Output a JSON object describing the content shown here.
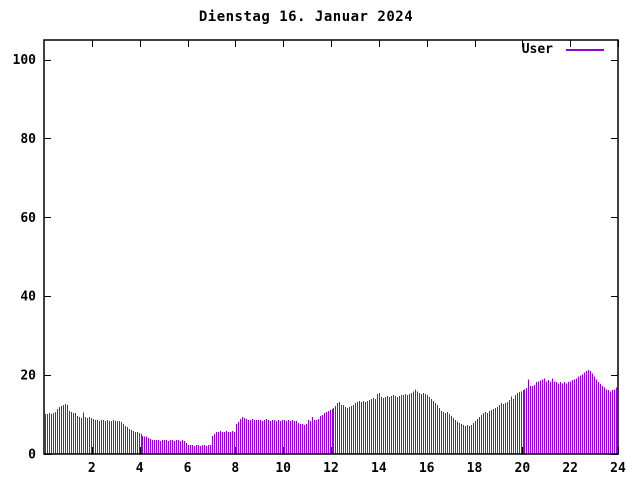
{
  "title": "Dienstag 16. Januar 2024",
  "legend": {
    "label": "User"
  },
  "colors": {
    "series": "#9400d3",
    "axis": "#000000",
    "background": "#ffffff",
    "text": "#000000"
  },
  "chart_data": {
    "type": "bar",
    "bar_style": "impulses",
    "title": "Dienstag 16. Januar 2024",
    "xlabel": "",
    "ylabel": "",
    "xlim": [
      0,
      24
    ],
    "ylim": [
      0,
      104.9
    ],
    "x_ticks": [
      2,
      4,
      6,
      8,
      10,
      12,
      14,
      16,
      18,
      20,
      22,
      24
    ],
    "y_ticks": [
      0,
      20,
      40,
      60,
      80,
      100
    ],
    "grid": false,
    "legend_position": "top-right",
    "interval_minutes": 5,
    "series": [
      {
        "name": "User",
        "color": "#9400d3",
        "values": [
          10.1,
          10.1,
          10.4,
          10.1,
          10.4,
          10.6,
          11.4,
          11.9,
          12.2,
          12.4,
          12.7,
          12.4,
          10.9,
          10.6,
          10.4,
          10.4,
          9.6,
          9.4,
          9.1,
          10.5,
          9.4,
          9.1,
          9.4,
          9.1,
          8.9,
          8.6,
          8.6,
          8.4,
          8.6,
          8.6,
          8.4,
          8.6,
          8.4,
          8.4,
          8.6,
          8.4,
          8.4,
          8.4,
          8.1,
          7.6,
          7.1,
          6.8,
          6.3,
          6.1,
          5.8,
          5.6,
          5.6,
          5.3,
          5.1,
          4.6,
          4.4,
          4.4,
          4.1,
          3.8,
          3.5,
          3.5,
          3.5,
          3.5,
          3.3,
          3.5,
          3.5,
          3.5,
          3.3,
          3.5,
          3.5,
          3.3,
          3.5,
          3.5,
          3.3,
          3.5,
          3.3,
          2.8,
          2.3,
          2.3,
          2.3,
          2.0,
          2.3,
          2.3,
          2.0,
          2.3,
          2.3,
          2.0,
          2.3,
          2.3,
          4.6,
          5.1,
          5.6,
          5.6,
          5.8,
          5.6,
          5.6,
          5.8,
          5.6,
          5.6,
          5.8,
          5.6,
          7.6,
          8.1,
          8.9,
          9.4,
          9.1,
          8.9,
          8.6,
          8.6,
          8.9,
          8.6,
          8.6,
          8.6,
          8.6,
          8.4,
          8.6,
          8.9,
          8.6,
          8.4,
          8.6,
          8.6,
          8.4,
          8.6,
          8.4,
          8.6,
          8.6,
          8.4,
          8.6,
          8.4,
          8.6,
          8.4,
          8.4,
          7.8,
          7.6,
          7.6,
          7.3,
          7.6,
          8.6,
          8.4,
          9.4,
          8.6,
          8.6,
          8.9,
          9.6,
          9.9,
          10.4,
          10.6,
          10.9,
          11.1,
          11.4,
          11.6,
          12.2,
          12.9,
          13.2,
          12.4,
          12.4,
          11.9,
          11.6,
          11.9,
          12.2,
          12.4,
          12.9,
          13.2,
          13.4,
          13.2,
          13.4,
          13.2,
          13.4,
          13.7,
          13.9,
          14.2,
          13.9,
          15.2,
          15.4,
          14.4,
          14.2,
          14.4,
          14.7,
          14.4,
          14.7,
          14.9,
          14.7,
          14.4,
          14.7,
          14.9,
          14.9,
          15.2,
          14.9,
          15.2,
          15.4,
          15.9,
          16.4,
          15.9,
          15.4,
          15.2,
          15.4,
          15.2,
          14.9,
          14.4,
          13.9,
          13.4,
          12.9,
          12.4,
          11.6,
          10.9,
          10.6,
          10.4,
          10.6,
          10.1,
          9.6,
          9.1,
          8.6,
          8.2,
          7.8,
          7.6,
          7.3,
          7.1,
          7.3,
          7.1,
          7.3,
          7.8,
          8.4,
          8.9,
          9.4,
          9.9,
          10.4,
          10.6,
          10.4,
          10.9,
          11.1,
          11.4,
          11.6,
          11.9,
          12.4,
          12.9,
          12.7,
          12.9,
          13.2,
          13.7,
          14.6,
          13.9,
          14.9,
          15.4,
          15.7,
          15.9,
          16.2,
          16.4,
          16.7,
          18.9,
          17.2,
          17.2,
          17.5,
          18.2,
          18.4,
          18.6,
          18.9,
          19.2,
          18.4,
          18.7,
          18.4,
          19.2,
          18.4,
          18.2,
          17.9,
          18.2,
          17.9,
          18.2,
          17.9,
          18.2,
          18.4,
          18.7,
          18.9,
          19.2,
          19.7,
          19.9,
          20.2,
          20.7,
          21.0,
          21.3,
          21.0,
          20.4,
          19.7,
          18.9,
          18.2,
          17.7,
          17.2,
          16.9,
          16.4,
          16.2,
          15.9,
          16.2,
          16.4,
          16.9
        ]
      }
    ]
  }
}
